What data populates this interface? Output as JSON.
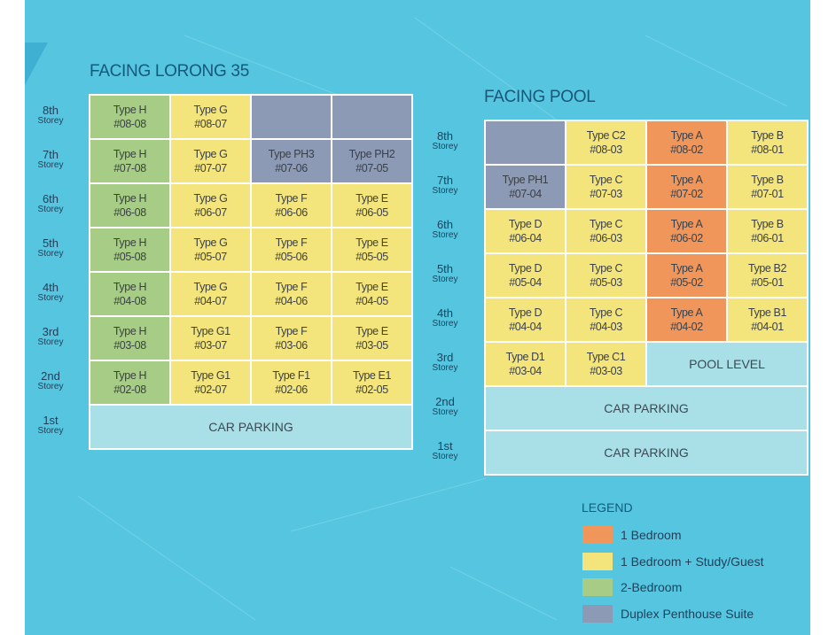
{
  "colors": {
    "one_bedroom": "#f1965a",
    "study": "#f4e47c",
    "two_bedroom": "#a7cc86",
    "penthouse": "#8d9ab5",
    "parking": "#a9dfe6"
  },
  "left_stack": {
    "title": "FACING LORONG 35",
    "floors": [
      {
        "n": "8th",
        "s": "Storey",
        "cells": [
          {
            "type": "Type H",
            "unit": "#08-08",
            "c": "green"
          },
          {
            "type": "Type G",
            "unit": "#08-07",
            "c": "yellow"
          },
          {
            "type": "",
            "unit": "",
            "c": "grey"
          },
          {
            "type": "",
            "unit": "",
            "c": "grey"
          }
        ]
      },
      {
        "n": "7th",
        "s": "Storey",
        "cells": [
          {
            "type": "Type H",
            "unit": "#07-08",
            "c": "green"
          },
          {
            "type": "Type G",
            "unit": "#07-07",
            "c": "yellow"
          },
          {
            "type": "Type PH3",
            "unit": "#07-06",
            "c": "grey"
          },
          {
            "type": "Type PH2",
            "unit": "#07-05",
            "c": "grey"
          }
        ]
      },
      {
        "n": "6th",
        "s": "Storey",
        "cells": [
          {
            "type": "Type H",
            "unit": "#06-08",
            "c": "green"
          },
          {
            "type": "Type G",
            "unit": "#06-07",
            "c": "yellow"
          },
          {
            "type": "Type F",
            "unit": "#06-06",
            "c": "yellow"
          },
          {
            "type": "Type E",
            "unit": "#06-05",
            "c": "yellow"
          }
        ]
      },
      {
        "n": "5th",
        "s": "Storey",
        "cells": [
          {
            "type": "Type H",
            "unit": "#05-08",
            "c": "green"
          },
          {
            "type": "Type G",
            "unit": "#05-07",
            "c": "yellow"
          },
          {
            "type": "Type F",
            "unit": "#05-06",
            "c": "yellow"
          },
          {
            "type": "Type E",
            "unit": "#05-05",
            "c": "yellow"
          }
        ]
      },
      {
        "n": "4th",
        "s": "Storey",
        "cells": [
          {
            "type": "Type H",
            "unit": "#04-08",
            "c": "green"
          },
          {
            "type": "Type G",
            "unit": "#04-07",
            "c": "yellow"
          },
          {
            "type": "Type F",
            "unit": "#04-06",
            "c": "yellow"
          },
          {
            "type": "Type E",
            "unit": "#04-05",
            "c": "yellow"
          }
        ]
      },
      {
        "n": "3rd",
        "s": "Storey",
        "cells": [
          {
            "type": "Type H",
            "unit": "#03-08",
            "c": "green"
          },
          {
            "type": "Type G1",
            "unit": "#03-07",
            "c": "yellow"
          },
          {
            "type": "Type F",
            "unit": "#03-06",
            "c": "yellow"
          },
          {
            "type": "Type E",
            "unit": "#03-05",
            "c": "yellow"
          }
        ]
      },
      {
        "n": "2nd",
        "s": "Storey",
        "cells": [
          {
            "type": "Type H",
            "unit": "#02-08",
            "c": "green"
          },
          {
            "type": "Type G1",
            "unit": "#02-07",
            "c": "yellow"
          },
          {
            "type": "Type F1",
            "unit": "#02-06",
            "c": "yellow"
          },
          {
            "type": "Type E1",
            "unit": "#02-05",
            "c": "yellow"
          }
        ]
      },
      {
        "n": "1st",
        "s": "Storey",
        "cells": [
          {
            "type": "CAR PARKING",
            "unit": "",
            "c": "park",
            "span": 4
          }
        ]
      }
    ]
  },
  "right_stack": {
    "title": "FACING POOL",
    "floors": [
      {
        "n": "8th",
        "s": "Storey",
        "cells": [
          {
            "type": "",
            "unit": "",
            "c": "grey"
          },
          {
            "type": "Type C2",
            "unit": "#08-03",
            "c": "yellow"
          },
          {
            "type": "Type A",
            "unit": "#08-02",
            "c": "orange"
          },
          {
            "type": "Type B",
            "unit": "#08-01",
            "c": "yellow"
          }
        ]
      },
      {
        "n": "7th",
        "s": "Storey",
        "cells": [
          {
            "type": "Type PH1",
            "unit": "#07-04",
            "c": "grey"
          },
          {
            "type": "Type C",
            "unit": "#07-03",
            "c": "yellow"
          },
          {
            "type": "Type A",
            "unit": "#07-02",
            "c": "orange"
          },
          {
            "type": "Type B",
            "unit": "#07-01",
            "c": "yellow"
          }
        ]
      },
      {
        "n": "6th",
        "s": "Storey",
        "cells": [
          {
            "type": "Type D",
            "unit": "#06-04",
            "c": "yellow"
          },
          {
            "type": "Type C",
            "unit": "#06-03",
            "c": "yellow"
          },
          {
            "type": "Type A",
            "unit": "#06-02",
            "c": "orange"
          },
          {
            "type": "Type B",
            "unit": "#06-01",
            "c": "yellow"
          }
        ]
      },
      {
        "n": "5th",
        "s": "Storey",
        "cells": [
          {
            "type": "Type D",
            "unit": "#05-04",
            "c": "yellow"
          },
          {
            "type": "Type C",
            "unit": "#05-03",
            "c": "yellow"
          },
          {
            "type": "Type A",
            "unit": "#05-02",
            "c": "orange"
          },
          {
            "type": "Type B2",
            "unit": "#05-01",
            "c": "yellow"
          }
        ]
      },
      {
        "n": "4th",
        "s": "Storey",
        "cells": [
          {
            "type": "Type D",
            "unit": "#04-04",
            "c": "yellow"
          },
          {
            "type": "Type C",
            "unit": "#04-03",
            "c": "yellow"
          },
          {
            "type": "Type A",
            "unit": "#04-02",
            "c": "orange"
          },
          {
            "type": "Type B1",
            "unit": "#04-01",
            "c": "yellow"
          }
        ]
      },
      {
        "n": "3rd",
        "s": "Storey",
        "cells": [
          {
            "type": "Type D1",
            "unit": "#03-04",
            "c": "yellow"
          },
          {
            "type": "Type C1",
            "unit": "#03-03",
            "c": "yellow"
          },
          {
            "type": "POOL LEVEL",
            "unit": "",
            "c": "park",
            "span": 2
          }
        ]
      },
      {
        "n": "2nd",
        "s": "Storey",
        "cells": [
          {
            "type": "CAR PARKING",
            "unit": "",
            "c": "park",
            "span": 4
          }
        ]
      },
      {
        "n": "1st",
        "s": "Storey",
        "cells": [
          {
            "type": "CAR PARKING",
            "unit": "",
            "c": "park",
            "span": 4
          }
        ]
      }
    ]
  },
  "legend": {
    "title": "LEGEND",
    "items": [
      {
        "label": "1 Bedroom",
        "c": "orange"
      },
      {
        "label": "1 Bedroom + Study/Guest",
        "c": "yellow"
      },
      {
        "label": "2-Bedroom",
        "c": "green"
      },
      {
        "label": "Duplex Penthouse Suite",
        "c": "grey"
      }
    ]
  }
}
